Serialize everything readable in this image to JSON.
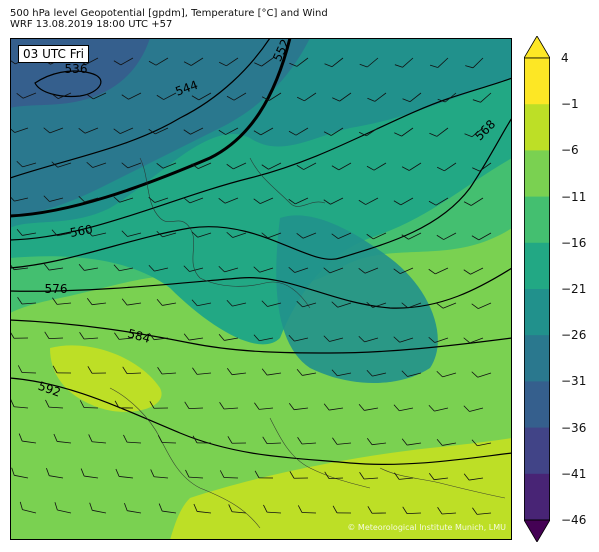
{
  "title": {
    "line1": "500 hPa level Geopotential [gpdm], Temperature [°C] and Wind",
    "line2": "WRF 13.08.2019 18:00 UTC +57"
  },
  "map": {
    "time_label": "03 UTC Fri",
    "copyright": "© Meteorological Institute Munich, LMU",
    "contour_labels": [
      "536",
      "544",
      "552",
      "560",
      "568",
      "576",
      "584",
      "592"
    ]
  },
  "colorbar": {
    "ticks": [
      "4",
      "−1",
      "−6",
      "−11",
      "−16",
      "−21",
      "−26",
      "−31",
      "−36",
      "−41",
      "−46"
    ],
    "colors": [
      "#fde725",
      "#bddf26",
      "#7ad151",
      "#44bf70",
      "#22a884",
      "#21918c",
      "#2a788e",
      "#355f8d",
      "#414487",
      "#482475",
      "#440154"
    ],
    "min": -46,
    "max": 4
  }
}
